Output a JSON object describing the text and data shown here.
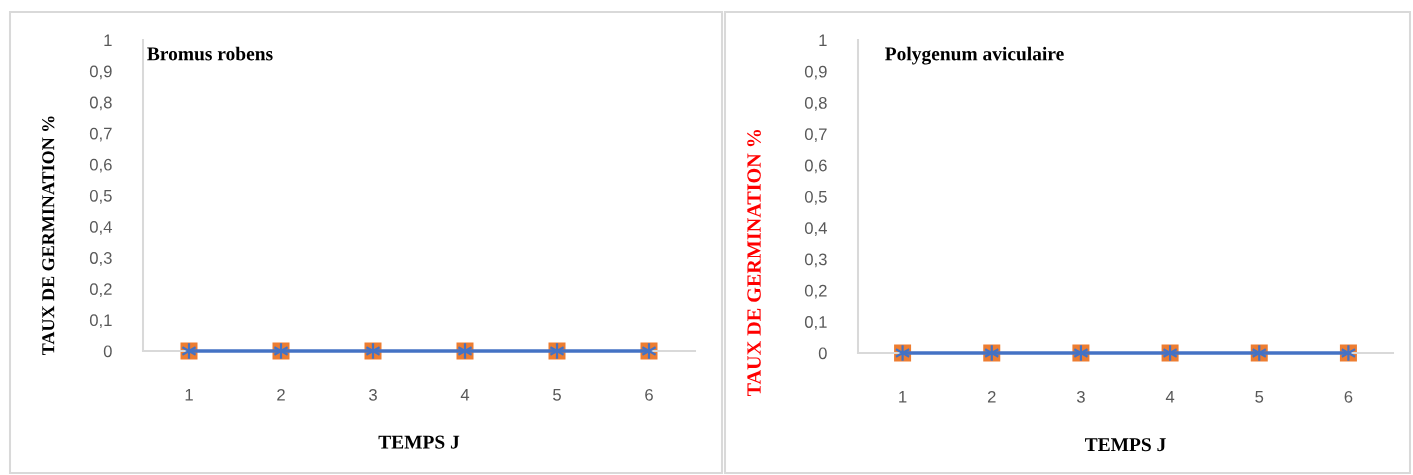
{
  "chart_data": [
    {
      "type": "line",
      "title": "Bromus robens",
      "xlabel": "TEMPS J",
      "ylabel": "TAUX DE GERMINATION %",
      "categories": [
        "1",
        "2",
        "3",
        "4",
        "5",
        "6"
      ],
      "series": [
        {
          "type": "scatter",
          "color": "#ed7d31",
          "marker": "square",
          "values": [
            0,
            0,
            0,
            0,
            0,
            0
          ]
        },
        {
          "color": "#4472c4",
          "marker": "cross",
          "values": [
            0,
            0,
            0,
            0,
            0,
            0
          ]
        }
      ],
      "ylim": [
        0,
        1
      ],
      "yticks": [
        0,
        {
          "value": 0.1,
          "label": "0,1"
        },
        {
          "value": 0.2,
          "label": "0,2"
        },
        {
          "value": 0.3,
          "label": "0,3"
        },
        {
          "value": 0.4,
          "label": "0,4"
        },
        {
          "value": 0.5,
          "label": "0,5"
        },
        {
          "value": 0.6,
          "label": "0,6"
        },
        {
          "value": 0.7,
          "label": "0,7"
        },
        {
          "value": 0.8,
          "label": "0,8"
        },
        {
          "value": 0.9,
          "label": "0,9"
        },
        1
      ],
      "grid": false
    },
    {
      "type": "line",
      "title": "Polygenum aviculaire",
      "xlabel": "TEMPS J",
      "ylabel": "TAUX DE GERMINATION %",
      "categories": [
        "1",
        "2",
        "3",
        "4",
        "5",
        "6"
      ],
      "series": [
        {
          "type": "scatter",
          "color": "#ed7d31",
          "marker": "square",
          "values": [
            0,
            0,
            0,
            0,
            0,
            0
          ]
        },
        {
          "color": "#4472c4",
          "marker": "cross",
          "values": [
            0,
            0,
            0,
            0,
            0,
            0
          ]
        }
      ],
      "ylim": [
        0,
        1
      ],
      "yticks": [
        0,
        {
          "value": 0.1,
          "label": "0,1"
        },
        {
          "value": 0.2,
          "label": "0,2"
        },
        {
          "value": 0.3,
          "label": "0,3"
        },
        {
          "value": 0.4,
          "label": "0,4"
        },
        {
          "value": 0.5,
          "label": "0,5"
        },
        {
          "value": 0.6,
          "label": "0,6"
        },
        {
          "value": 0.7,
          "label": "0,7"
        },
        {
          "value": 0.8,
          "label": "0,8"
        },
        {
          "value": 0.9,
          "label": "0,9"
        },
        1
      ],
      "grid": false
    }
  ]
}
